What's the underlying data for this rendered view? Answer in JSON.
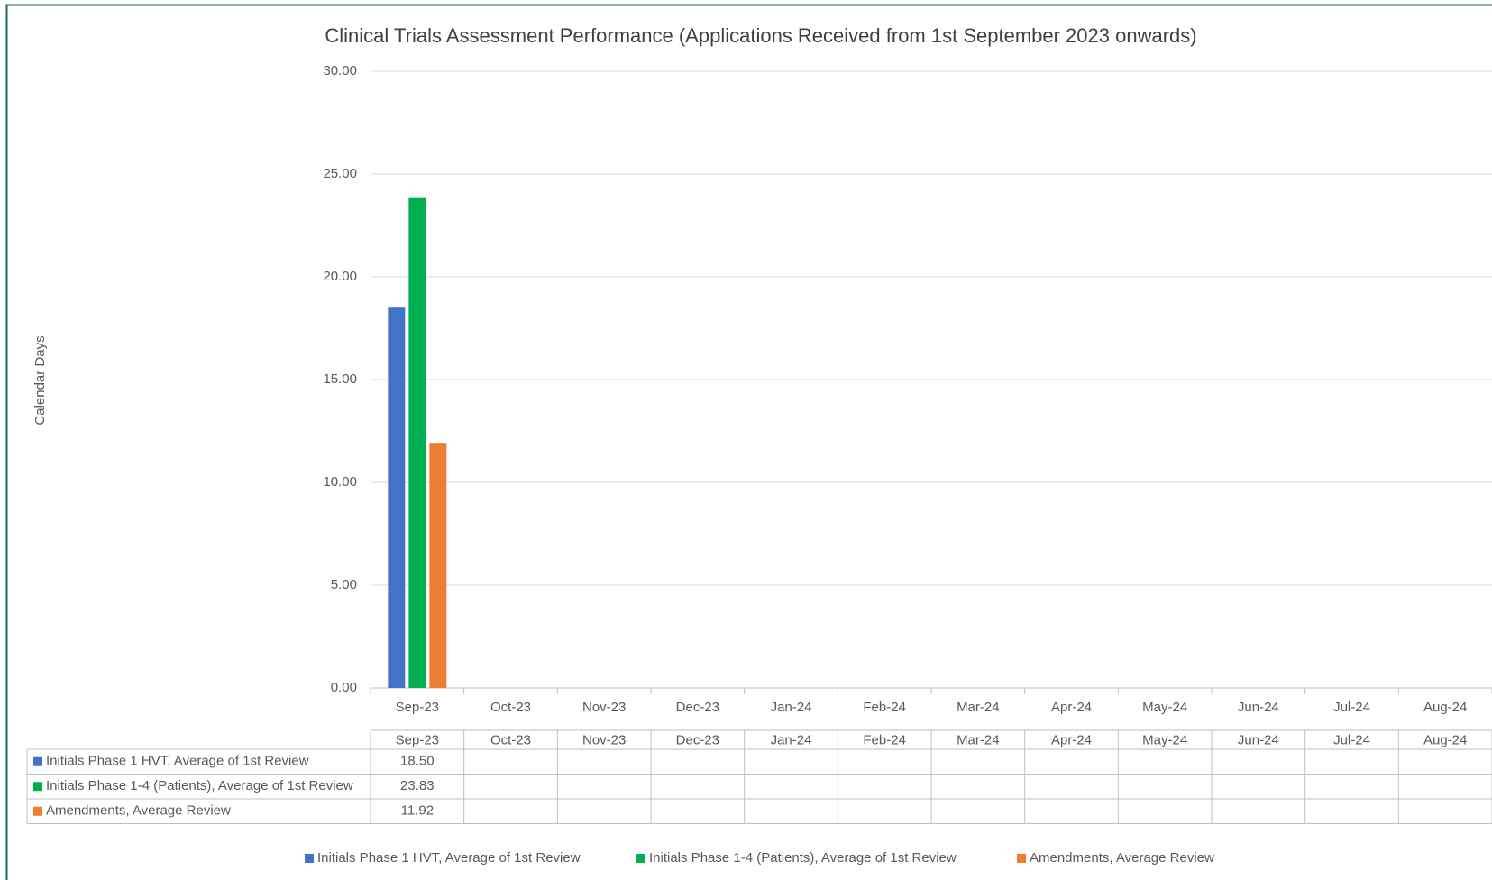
{
  "chart_data": {
    "type": "bar",
    "title": "Clinical Trials Assessment Performance  (Applications Received from 1st September 2023 onwards)",
    "y_label": "Calendar Days",
    "categories": [
      "Sep-23",
      "Oct-23",
      "Nov-23",
      "Dec-23",
      "Jan-24",
      "Feb-24",
      "Mar-24",
      "Apr-24",
      "May-24",
      "Jun-24",
      "Jul-24",
      "Aug-24"
    ],
    "series": [
      {
        "name": "Initials Phase 1 HVT, Average of 1st Review",
        "color": "#4472c4",
        "values": [
          18.5,
          null,
          null,
          null,
          null,
          null,
          null,
          null,
          null,
          null,
          null,
          null
        ],
        "value_labels": [
          "18.50",
          null,
          null,
          null,
          null,
          null,
          null,
          null,
          null,
          null,
          null,
          null
        ]
      },
      {
        "name": "Initials Phase 1-4 (Patients), Average of 1st Review",
        "color": "#00b050",
        "values": [
          23.83,
          null,
          null,
          null,
          null,
          null,
          null,
          null,
          null,
          null,
          null,
          null
        ],
        "value_labels": [
          "23.83",
          null,
          null,
          null,
          null,
          null,
          null,
          null,
          null,
          null,
          null,
          null
        ]
      },
      {
        "name": "Amendments, Average Review",
        "color": "#ed7d31",
        "values": [
          11.92,
          null,
          null,
          null,
          null,
          null,
          null,
          null,
          null,
          null,
          null,
          null
        ],
        "value_labels": [
          "11.92",
          null,
          null,
          null,
          null,
          null,
          null,
          null,
          null,
          null,
          null,
          null
        ]
      }
    ],
    "ylim": [
      0,
      30
    ],
    "yticks": [
      {
        "value": 0,
        "label": "0.00"
      },
      {
        "value": 5,
        "label": "5.00"
      },
      {
        "value": 10,
        "label": "10.00"
      },
      {
        "value": 15,
        "label": "15.00"
      },
      {
        "value": 20,
        "label": "20.00"
      },
      {
        "value": 25,
        "label": "25.00"
      },
      {
        "value": 30,
        "label": "30.00"
      }
    ],
    "grid": true,
    "data_table": true,
    "legend": "bottom"
  }
}
